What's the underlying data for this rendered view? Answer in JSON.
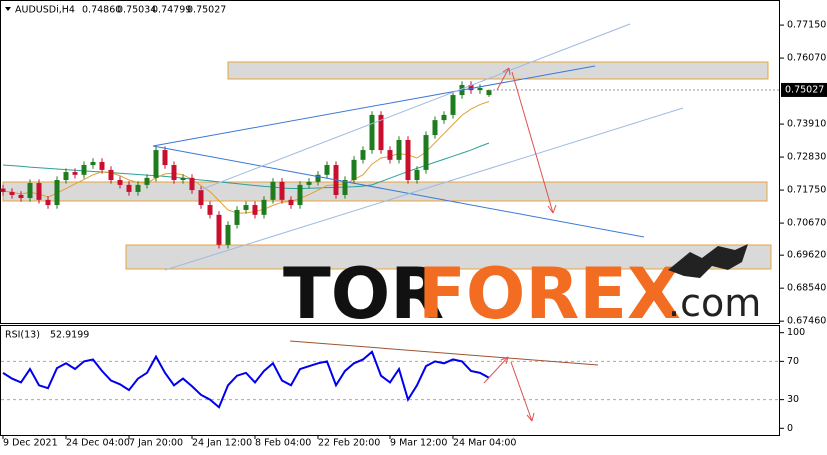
{
  "header": {
    "symbol": "AUDUSDi,H4",
    "quote": [
      "0.74860",
      "0.75034",
      "0.74799",
      "0.75027"
    ]
  },
  "watermark": {
    "tor": "TOR",
    "forex": "FOREX",
    "com": ".com"
  },
  "chart_data": [
    {
      "type": "candlestick",
      "categories": [
        "9 Dec 2021",
        null,
        null,
        null,
        null,
        null,
        null,
        "24 Dec 04:00",
        null,
        null,
        null,
        null,
        null,
        null,
        "7 Jan 20:00",
        null,
        null,
        null,
        null,
        null,
        null,
        "24 Jan 12:00",
        null,
        null,
        null,
        null,
        null,
        null,
        "8 Feb 04:00",
        null,
        null,
        null,
        null,
        null,
        null,
        "22 Feb 20:00",
        null,
        null,
        null,
        null,
        null,
        null,
        null,
        "9 Mar 12:00",
        null,
        null,
        null,
        null,
        null,
        null,
        "24 Mar 04:00",
        null,
        null,
        null,
        null
      ],
      "open": [
        0.718,
        0.7169,
        0.7159,
        0.7149,
        0.7198,
        0.7143,
        0.7126,
        0.7208,
        0.7234,
        0.7225,
        0.7257,
        0.7267,
        0.7241,
        0.7208,
        0.7192,
        0.7169,
        0.7192,
        0.7215,
        0.7306,
        0.7257,
        0.7208,
        0.7215,
        0.7175,
        0.7126,
        0.7094,
        0.6996,
        0.7061,
        0.711,
        0.7126,
        0.7094,
        0.7143,
        0.7202,
        0.7143,
        0.7126,
        0.7192,
        0.7202,
        0.7225,
        0.7257,
        0.7159,
        0.7208,
        0.7274,
        0.7306,
        0.7421,
        0.7306,
        0.7274,
        0.7339,
        0.7208,
        0.7241,
        0.7355,
        0.7404,
        0.7421,
        0.7486,
        0.7519,
        0.7502,
        0.7486
      ],
      "high": [
        0.7192,
        0.7181,
        0.7171,
        0.721,
        0.721,
        0.7155,
        0.722,
        0.7246,
        0.7246,
        0.7269,
        0.7279,
        0.7279,
        0.7253,
        0.722,
        0.7204,
        0.7204,
        0.7227,
        0.7318,
        0.7318,
        0.7269,
        0.7227,
        0.7227,
        0.7187,
        0.7138,
        0.7106,
        0.7073,
        0.7122,
        0.7138,
        0.7138,
        0.7155,
        0.7214,
        0.7214,
        0.7155,
        0.7204,
        0.7214,
        0.7237,
        0.7269,
        0.7269,
        0.722,
        0.7286,
        0.7318,
        0.7433,
        0.7433,
        0.7318,
        0.7351,
        0.7351,
        0.7253,
        0.7367,
        0.7416,
        0.7433,
        0.7498,
        0.7531,
        0.7531,
        0.7521,
        0.75034
      ],
      "low": [
        0.7157,
        0.7147,
        0.7137,
        0.7137,
        0.7131,
        0.7114,
        0.7114,
        0.7196,
        0.7213,
        0.7213,
        0.7245,
        0.7229,
        0.7196,
        0.718,
        0.7157,
        0.7157,
        0.718,
        0.7203,
        0.7245,
        0.7196,
        0.7196,
        0.7163,
        0.7114,
        0.7082,
        0.6984,
        0.6984,
        0.7049,
        0.7098,
        0.7082,
        0.7082,
        0.7131,
        0.7131,
        0.7114,
        0.7114,
        0.718,
        0.719,
        0.7213,
        0.7147,
        0.7147,
        0.7196,
        0.7262,
        0.7294,
        0.7294,
        0.7262,
        0.7262,
        0.7196,
        0.7196,
        0.7229,
        0.7343,
        0.7392,
        0.7409,
        0.7474,
        0.749,
        0.749,
        0.74799
      ],
      "close": [
        0.7169,
        0.7159,
        0.7149,
        0.7198,
        0.7143,
        0.7126,
        0.7208,
        0.7234,
        0.7225,
        0.7257,
        0.7267,
        0.7241,
        0.7208,
        0.7192,
        0.7169,
        0.7192,
        0.7215,
        0.7306,
        0.7257,
        0.7208,
        0.7215,
        0.7175,
        0.7126,
        0.7094,
        0.6996,
        0.7061,
        0.711,
        0.7126,
        0.7094,
        0.7143,
        0.7202,
        0.7143,
        0.7126,
        0.7192,
        0.7202,
        0.7225,
        0.7257,
        0.7159,
        0.7208,
        0.7274,
        0.7306,
        0.7421,
        0.7306,
        0.7274,
        0.7339,
        0.7208,
        0.7241,
        0.7355,
        0.7404,
        0.7421,
        0.7486,
        0.7519,
        0.7502,
        0.7509,
        0.75027
      ],
      "up_color": "#1e7b1e",
      "down_color": "#c8102e",
      "ma": [
        {
          "color": "#2aa198",
          "values": [
            0.7257,
            0.7255,
            0.7253,
            0.725,
            0.7248,
            0.7246,
            0.7244,
            0.7242,
            0.724,
            0.7238,
            0.7236,
            0.7234,
            0.7232,
            0.723,
            0.7228,
            0.7226,
            0.7224,
            0.7222,
            0.722,
            0.7217,
            0.7214,
            0.7211,
            0.7208,
            0.7205,
            0.7202,
            0.7199,
            0.7196,
            0.7193,
            0.719,
            0.7187,
            0.7185,
            0.7182,
            0.718,
            0.718,
            0.7181,
            0.7182,
            0.7183,
            0.7184,
            0.7185,
            0.7186,
            0.7188,
            0.7192,
            0.7203,
            0.7214,
            0.7225,
            0.7236,
            0.7246,
            0.7256,
            0.7266,
            0.7276,
            0.7286,
            0.7296,
            0.7306,
            0.7318,
            0.7329
          ]
        },
        {
          "color": "#e0a030",
          "values": [
            0.7172,
            0.7168,
            0.7162,
            0.7168,
            0.7162,
            0.7152,
            0.7165,
            0.718,
            0.7195,
            0.721,
            0.7225,
            0.7235,
            0.7232,
            0.7222,
            0.7208,
            0.72,
            0.7198,
            0.7215,
            0.7228,
            0.723,
            0.7225,
            0.721,
            0.719,
            0.717,
            0.714,
            0.711,
            0.71,
            0.71,
            0.7105,
            0.7112,
            0.7125,
            0.7135,
            0.7138,
            0.7148,
            0.716,
            0.7175,
            0.719,
            0.7192,
            0.7195,
            0.721,
            0.7225,
            0.726,
            0.728,
            0.7285,
            0.7295,
            0.729,
            0.728,
            0.73,
            0.733,
            0.736,
            0.739,
            0.742,
            0.744,
            0.7455,
            0.7465
          ]
        }
      ],
      "ylim": [
        0.674,
        0.7784
      ],
      "yticks": [
        {
          "value": 0.7715,
          "label": "0.77150"
        },
        {
          "value": 0.7607,
          "label": "0.76070"
        },
        {
          "value": 0.7391,
          "label": "0.73910"
        },
        {
          "value": 0.7283,
          "label": "0.72830"
        },
        {
          "value": 0.7175,
          "label": "0.71750"
        },
        {
          "value": 0.7067,
          "label": "0.70670"
        },
        {
          "value": 0.6962,
          "label": "0.69620"
        },
        {
          "value": 0.6854,
          "label": "0.68540"
        },
        {
          "value": 0.6746,
          "label": "0.67460"
        }
      ],
      "current_price": {
        "value": 0.75027,
        "label": "0.75027"
      }
    },
    {
      "type": "line",
      "series": [
        {
          "name": "RSI(13)",
          "color": "#0000ee",
          "values": [
            58,
            52,
            48,
            62,
            45,
            42,
            63,
            68,
            62,
            70,
            72,
            60,
            50,
            46,
            40,
            52,
            58,
            75,
            58,
            45,
            52,
            44,
            35,
            30,
            22,
            45,
            55,
            58,
            48,
            60,
            68,
            50,
            45,
            62,
            65,
            68,
            70,
            45,
            60,
            68,
            72,
            80,
            55,
            48,
            62,
            30,
            45,
            65,
            70,
            68,
            72,
            70,
            60,
            58,
            52.9199
          ]
        }
      ],
      "ylim": [
        -7,
        107
      ],
      "yticks": [
        100,
        70,
        30,
        0
      ],
      "levels": [
        70,
        30
      ]
    }
  ]
}
